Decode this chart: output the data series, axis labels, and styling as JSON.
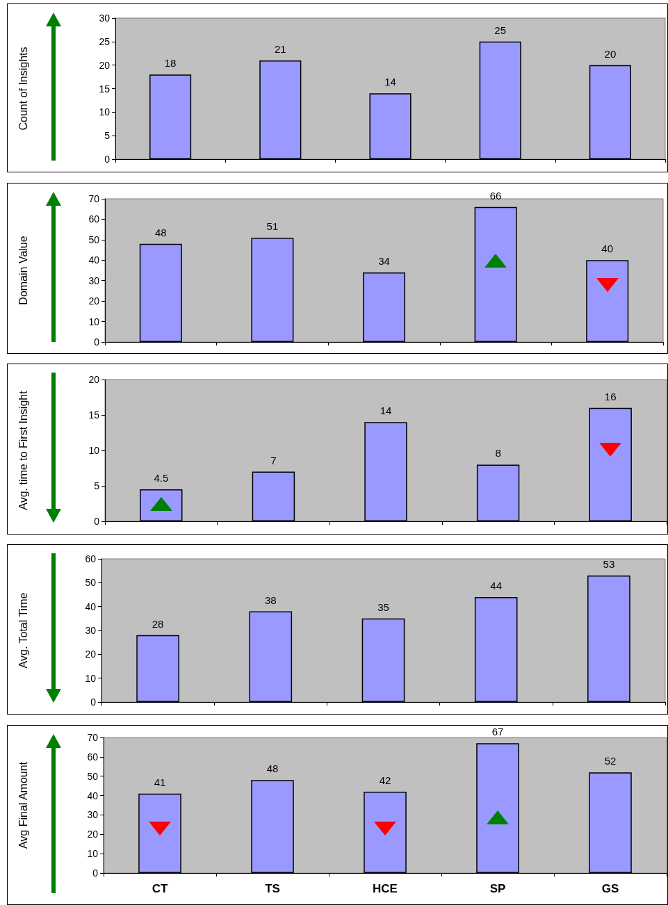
{
  "chart_data": [
    {
      "type": "bar",
      "ylabel": "Count of Insights",
      "categories": [
        null,
        null,
        null,
        null,
        null
      ],
      "values": [
        18,
        21,
        14,
        25,
        20
      ],
      "color": "#9999ff",
      "ylim": [
        0,
        30
      ],
      "yticks": [
        0,
        5,
        10,
        15,
        20,
        25,
        30
      ],
      "data_labels": true,
      "grid": false
    },
    {
      "type": "bar",
      "ylabel": "Domain Value",
      "categories": [
        null,
        null,
        null,
        null,
        null
      ],
      "values": [
        48,
        51,
        34,
        66,
        40
      ],
      "color": "#9999ff",
      "ylim": [
        0,
        70
      ],
      "yticks": [
        0,
        10,
        20,
        30,
        40,
        50,
        60,
        70
      ],
      "data_labels": true,
      "grid": false
    },
    {
      "type": "bar",
      "ylabel": "Avg. time to First Insight",
      "categories": [
        null,
        null,
        null,
        null,
        null
      ],
      "values": [
        4.5,
        7,
        14,
        8,
        16
      ],
      "color": "#9999ff",
      "ylim": [
        0,
        20
      ],
      "yticks": [
        0,
        5,
        10,
        15,
        20
      ],
      "data_labels": true,
      "grid": false
    },
    {
      "type": "bar",
      "ylabel": "Avg. Total Time",
      "categories": [
        null,
        null,
        null,
        null,
        null
      ],
      "values": [
        28,
        38,
        35,
        44,
        53
      ],
      "color": "#9999ff",
      "ylim": [
        0,
        60
      ],
      "yticks": [
        0,
        10,
        20,
        30,
        40,
        50,
        60
      ],
      "data_labels": true,
      "grid": false
    },
    {
      "type": "bar",
      "ylabel": "Avg Final Amount",
      "categories": [
        "CT",
        "TS",
        "HCE",
        "SP",
        "GS"
      ],
      "values": [
        41,
        48,
        42,
        67,
        52
      ],
      "color": "#9999ff",
      "ylim": [
        0,
        70
      ],
      "yticks": [
        0,
        10,
        20,
        30,
        40,
        50,
        60,
        70
      ],
      "data_labels": true,
      "grid": false
    }
  ]
}
